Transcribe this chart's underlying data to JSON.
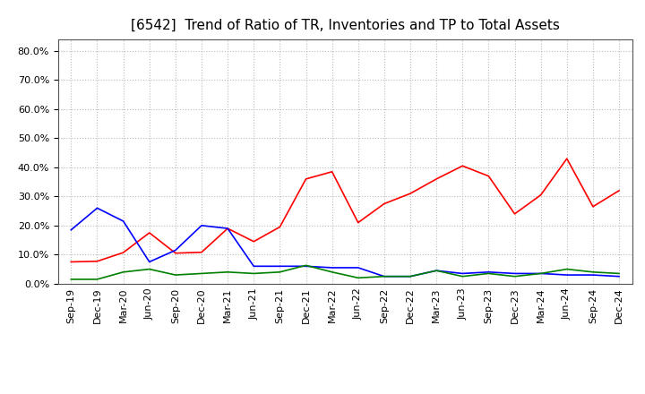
{
  "title": "[6542]  Trend of Ratio of TR, Inventories and TP to Total Assets",
  "x_labels": [
    "Sep-19",
    "Dec-19",
    "Mar-20",
    "Jun-20",
    "Sep-20",
    "Dec-20",
    "Mar-21",
    "Jun-21",
    "Sep-21",
    "Dec-21",
    "Mar-22",
    "Jun-22",
    "Sep-22",
    "Dec-22",
    "Mar-23",
    "Jun-23",
    "Sep-23",
    "Dec-23",
    "Mar-24",
    "Jun-24",
    "Sep-24",
    "Dec-24"
  ],
  "trade_receivables": [
    0.075,
    0.077,
    0.107,
    0.175,
    0.105,
    0.108,
    0.19,
    0.145,
    0.195,
    0.36,
    0.385,
    0.21,
    0.275,
    0.31,
    0.36,
    0.405,
    0.37,
    0.24,
    0.305,
    0.43,
    0.265,
    0.32
  ],
  "inventories": [
    0.185,
    0.26,
    0.215,
    0.075,
    0.115,
    0.2,
    0.19,
    0.06,
    0.06,
    0.06,
    0.055,
    0.055,
    0.025,
    0.025,
    0.045,
    0.035,
    0.04,
    0.035,
    0.035,
    0.03,
    0.03,
    0.025
  ],
  "trade_payables": [
    0.015,
    0.015,
    0.04,
    0.05,
    0.03,
    0.035,
    0.04,
    0.035,
    0.04,
    0.063,
    0.04,
    0.02,
    0.025,
    0.025,
    0.045,
    0.025,
    0.035,
    0.025,
    0.035,
    0.05,
    0.04,
    0.035
  ],
  "tr_color": "#ff0000",
  "inv_color": "#0000ff",
  "tp_color": "#008000",
  "ylim": [
    0.0,
    0.84
  ],
  "yticks": [
    0.0,
    0.1,
    0.2,
    0.3,
    0.4,
    0.5,
    0.6,
    0.7,
    0.8
  ],
  "background_color": "#ffffff",
  "grid_color": "#bbbbbb",
  "title_fontsize": 11,
  "tick_fontsize": 8,
  "legend_fontsize": 9
}
